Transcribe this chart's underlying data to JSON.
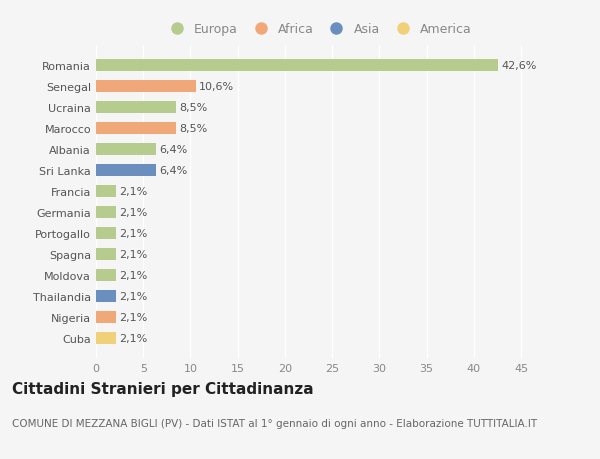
{
  "categories": [
    "Romania",
    "Senegal",
    "Ucraina",
    "Marocco",
    "Albania",
    "Sri Lanka",
    "Francia",
    "Germania",
    "Portogallo",
    "Spagna",
    "Moldova",
    "Thailandia",
    "Nigeria",
    "Cuba"
  ],
  "values": [
    42.6,
    10.6,
    8.5,
    8.5,
    6.4,
    6.4,
    2.1,
    2.1,
    2.1,
    2.1,
    2.1,
    2.1,
    2.1,
    2.1
  ],
  "labels": [
    "42,6%",
    "10,6%",
    "8,5%",
    "8,5%",
    "6,4%",
    "6,4%",
    "2,1%",
    "2,1%",
    "2,1%",
    "2,1%",
    "2,1%",
    "2,1%",
    "2,1%",
    "2,1%"
  ],
  "continent": [
    "Europa",
    "Africa",
    "Europa",
    "Africa",
    "Europa",
    "Asia",
    "Europa",
    "Europa",
    "Europa",
    "Europa",
    "Europa",
    "Asia",
    "Africa",
    "America"
  ],
  "colors": {
    "Europa": "#b5cc8e",
    "Africa": "#f0a878",
    "Asia": "#6a8fbf",
    "America": "#f0d078"
  },
  "xlim": [
    0,
    47
  ],
  "xticks": [
    0,
    5,
    10,
    15,
    20,
    25,
    30,
    35,
    40,
    45
  ],
  "background_color": "#f5f5f5",
  "title": "Cittadini Stranieri per Cittadinanza",
  "subtitle": "COMUNE DI MEZZANA BIGLI (PV) - Dati ISTAT al 1° gennaio di ogni anno - Elaborazione TUTTITALIA.IT",
  "title_fontsize": 11,
  "subtitle_fontsize": 7.5,
  "label_fontsize": 8,
  "tick_fontsize": 8,
  "legend_order": [
    "Europa",
    "Africa",
    "Asia",
    "America"
  ],
  "legend_fontsize": 9
}
